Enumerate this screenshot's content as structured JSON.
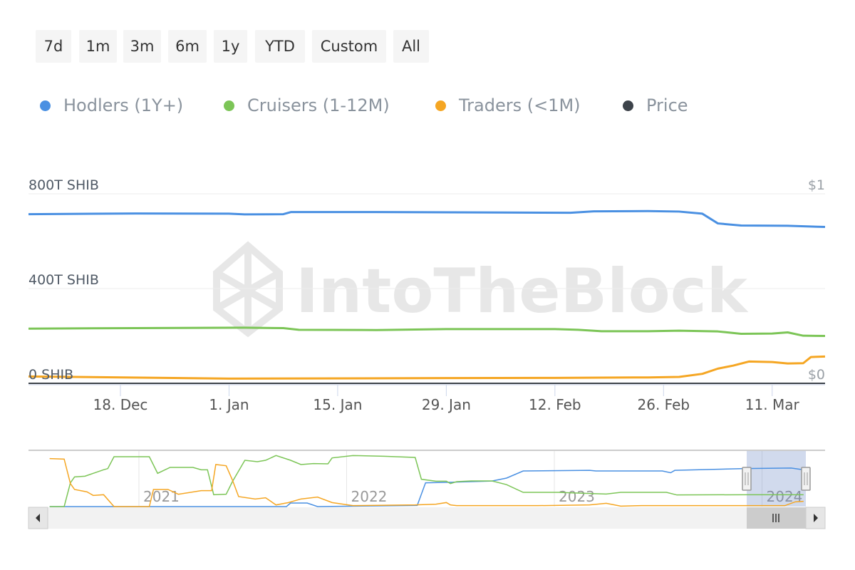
{
  "range_buttons": [
    "7d",
    "1m",
    "3m",
    "6m",
    "1y",
    "YTD",
    "Custom",
    "All"
  ],
  "legend": [
    {
      "label": "Hodlers (1Y+)",
      "color": "#4a90e2"
    },
    {
      "label": "Cruisers (1-12M)",
      "color": "#7cc557"
    },
    {
      "label": "Traders (<1M)",
      "color": "#f5a623"
    },
    {
      "label": "Price",
      "color": "#3d434a"
    }
  ],
  "watermark": "IntoTheBlock",
  "chart_data": {
    "type": "line",
    "title": "",
    "y_axis_left": {
      "ticks": [
        "0 SHIB",
        "400T SHIB",
        "800T SHIB"
      ],
      "values": [
        0,
        400,
        800
      ],
      "unit": "T SHIB",
      "ylim": [
        0,
        800
      ]
    },
    "y_axis_right": {
      "ticks": [
        "$0",
        "$1"
      ],
      "ylim": [
        0,
        1
      ]
    },
    "x_axis": {
      "ticks": [
        "18. Dec",
        "1. Jan",
        "15. Jan",
        "29. Jan",
        "12. Feb",
        "26. Feb",
        "11. Mar"
      ],
      "tick_dates": [
        "2023-12-18",
        "2024-01-01",
        "2024-01-15",
        "2024-01-29",
        "2024-02-12",
        "2024-02-26",
        "2024-03-11"
      ],
      "range": [
        "2023-12-06",
        "2024-03-18"
      ]
    },
    "grid": true,
    "legend_position": "top-left",
    "series": [
      {
        "name": "Hodlers (1Y+)",
        "color": "#4a90e2",
        "points": [
          [
            "2023-12-06",
            714
          ],
          [
            "2023-12-20",
            717
          ],
          [
            "2024-01-01",
            716
          ],
          [
            "2024-01-03",
            713
          ],
          [
            "2024-01-08",
            714
          ],
          [
            "2024-01-09",
            723
          ],
          [
            "2024-01-20",
            723
          ],
          [
            "2024-02-05",
            721
          ],
          [
            "2024-02-14",
            720
          ],
          [
            "2024-02-17",
            726
          ],
          [
            "2024-02-24",
            727
          ],
          [
            "2024-02-28",
            725
          ],
          [
            "2024-03-02",
            716
          ],
          [
            "2024-03-04",
            675
          ],
          [
            "2024-03-07",
            666
          ],
          [
            "2024-03-13",
            665
          ],
          [
            "2024-03-18",
            660
          ]
        ]
      },
      {
        "name": "Cruisers (1-12M)",
        "color": "#7cc557",
        "points": [
          [
            "2023-12-06",
            231
          ],
          [
            "2024-01-03",
            235
          ],
          [
            "2024-01-08",
            233
          ],
          [
            "2024-01-10",
            226
          ],
          [
            "2024-01-20",
            225
          ],
          [
            "2024-01-29",
            229
          ],
          [
            "2024-02-12",
            229
          ],
          [
            "2024-02-15",
            226
          ],
          [
            "2024-02-18",
            220
          ],
          [
            "2024-02-24",
            220
          ],
          [
            "2024-02-28",
            222
          ],
          [
            "2024-03-04",
            219
          ],
          [
            "2024-03-07",
            209
          ],
          [
            "2024-03-11",
            210
          ],
          [
            "2024-03-13",
            215
          ],
          [
            "2024-03-15",
            201
          ],
          [
            "2024-03-18",
            200
          ]
        ]
      },
      {
        "name": "Traders (<1M)",
        "color": "#f5a623",
        "points": [
          [
            "2023-12-06",
            29
          ],
          [
            "2024-01-01",
            20
          ],
          [
            "2024-01-29",
            22
          ],
          [
            "2024-02-12",
            23
          ],
          [
            "2024-02-24",
            25
          ],
          [
            "2024-02-28",
            27
          ],
          [
            "2024-03-02",
            40
          ],
          [
            "2024-03-04",
            62
          ],
          [
            "2024-03-06",
            75
          ],
          [
            "2024-03-08",
            92
          ],
          [
            "2024-03-11",
            90
          ],
          [
            "2024-03-13",
            84
          ],
          [
            "2024-03-15",
            85
          ],
          [
            "2024-03-16",
            111
          ],
          [
            "2024-03-18",
            113
          ]
        ]
      }
    ],
    "navigator": {
      "x_ticks": [
        "2021",
        "2022",
        "2023",
        "2024"
      ],
      "x_range_years": [
        2020.55,
        2024.21
      ],
      "selected_range": [
        "2023-12-06",
        "2024-03-18"
      ],
      "series": [
        {
          "name": "Hodlers (1Y+)",
          "color": "#4a90e2",
          "points": [
            [
              2020.57,
              0
            ],
            [
              2021.71,
              0
            ],
            [
              2021.73,
              60
            ],
            [
              2021.81,
              60
            ],
            [
              2021.86,
              0
            ],
            [
              2022.34,
              20
            ],
            [
              2022.38,
              400
            ],
            [
              2022.5,
              410
            ],
            [
              2022.7,
              430
            ],
            [
              2022.77,
              480
            ],
            [
              2022.85,
              600
            ],
            [
              2023.17,
              610
            ],
            [
              2023.2,
              600
            ],
            [
              2023.52,
              600
            ],
            [
              2023.56,
              570
            ],
            [
              2023.58,
              610
            ],
            [
              2023.92,
              640
            ],
            [
              2024.14,
              650
            ],
            [
              2024.2,
              620
            ]
          ]
        },
        {
          "name": "Cruisers (1-12M)",
          "color": "#7cc557",
          "points": [
            [
              2020.57,
              0
            ],
            [
              2020.64,
              0
            ],
            [
              2020.67,
              400
            ],
            [
              2020.69,
              500
            ],
            [
              2020.74,
              512
            ],
            [
              2020.78,
              560
            ],
            [
              2020.83,
              620
            ],
            [
              2020.85,
              640
            ],
            [
              2020.88,
              840
            ],
            [
              2021.05,
              840
            ],
            [
              2021.09,
              560
            ],
            [
              2021.15,
              660
            ],
            [
              2021.26,
              660
            ],
            [
              2021.3,
              620
            ],
            [
              2021.33,
              620
            ],
            [
              2021.36,
              200
            ],
            [
              2021.42,
              208
            ],
            [
              2021.45,
              420
            ],
            [
              2021.51,
              780
            ],
            [
              2021.57,
              756
            ],
            [
              2021.61,
              780
            ],
            [
              2021.66,
              860
            ],
            [
              2021.73,
              780
            ],
            [
              2021.78,
              708
            ],
            [
              2021.84,
              724
            ],
            [
              2021.91,
              720
            ],
            [
              2021.93,
              820
            ],
            [
              2022.03,
              860
            ],
            [
              2022.18,
              848
            ],
            [
              2022.33,
              828
            ],
            [
              2022.36,
              460
            ],
            [
              2022.43,
              428
            ],
            [
              2022.48,
              428
            ],
            [
              2022.5,
              388
            ],
            [
              2022.53,
              420
            ],
            [
              2022.6,
              432
            ],
            [
              2022.7,
              432
            ],
            [
              2022.77,
              370
            ],
            [
              2022.85,
              240
            ],
            [
              2023.02,
              240
            ],
            [
              2023.17,
              220
            ],
            [
              2023.25,
              212
            ],
            [
              2023.32,
              240
            ],
            [
              2023.54,
              240
            ],
            [
              2023.59,
              196
            ],
            [
              2023.92,
              200
            ],
            [
              2024.2,
              200
            ]
          ]
        },
        {
          "name": "Traders (<1M)",
          "color": "#f5a623",
          "points": [
            [
              2020.57,
              808
            ],
            [
              2020.64,
              800
            ],
            [
              2020.67,
              388
            ],
            [
              2020.69,
              288
            ],
            [
              2020.75,
              248
            ],
            [
              2020.78,
              188
            ],
            [
              2020.83,
              200
            ],
            [
              2020.88,
              0
            ],
            [
              2021.05,
              0
            ],
            [
              2021.07,
              288
            ],
            [
              2021.14,
              288
            ],
            [
              2021.19,
              208
            ],
            [
              2021.3,
              268
            ],
            [
              2021.35,
              268
            ],
            [
              2021.37,
              708
            ],
            [
              2021.42,
              688
            ],
            [
              2021.45,
              448
            ],
            [
              2021.48,
              168
            ],
            [
              2021.56,
              128
            ],
            [
              2021.61,
              148
            ],
            [
              2021.66,
              28
            ],
            [
              2021.72,
              68
            ],
            [
              2021.78,
              128
            ],
            [
              2021.86,
              160
            ],
            [
              2021.93,
              68
            ],
            [
              2022.03,
              16
            ],
            [
              2022.33,
              28
            ],
            [
              2022.43,
              40
            ],
            [
              2022.48,
              68
            ],
            [
              2022.5,
              28
            ],
            [
              2022.53,
              16
            ],
            [
              2022.92,
              16
            ],
            [
              2023.17,
              28
            ],
            [
              2023.25,
              56
            ],
            [
              2023.32,
              8
            ],
            [
              2023.42,
              16
            ],
            [
              2024.11,
              16
            ],
            [
              2024.16,
              80
            ],
            [
              2024.2,
              88
            ]
          ]
        }
      ]
    }
  }
}
